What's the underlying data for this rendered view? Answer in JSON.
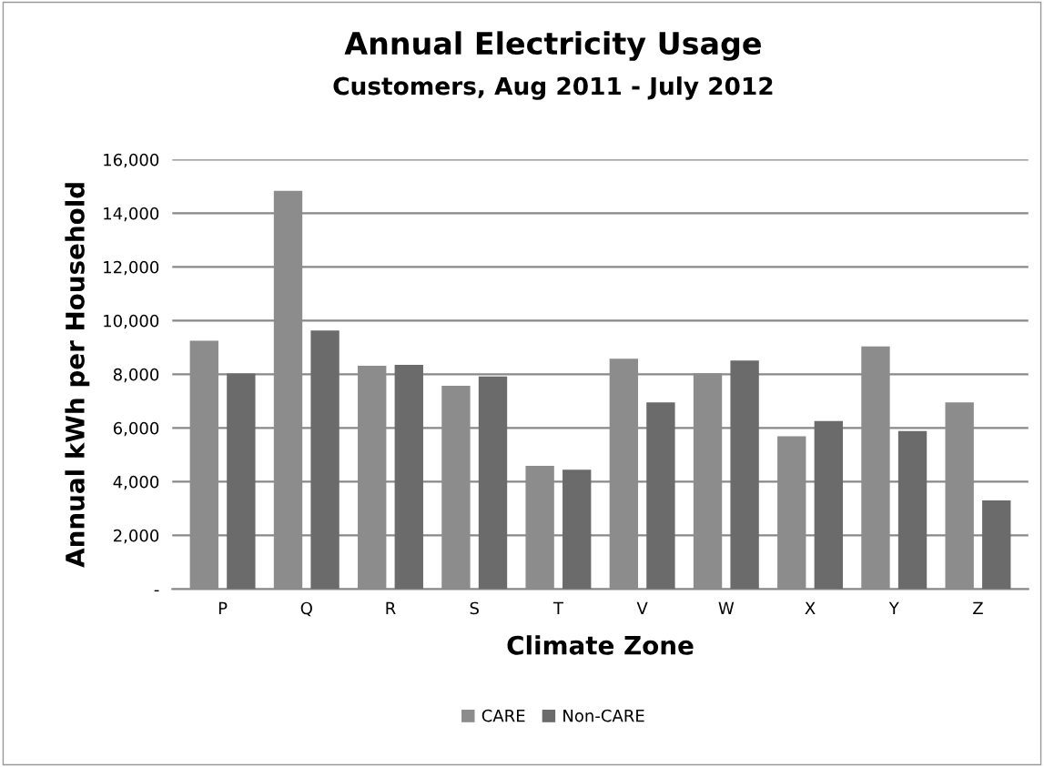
{
  "chart_data": {
    "type": "bar",
    "title": "Annual Electricity Usage",
    "subtitle": "Customers, Aug 2011 - July 2012",
    "xlabel": "Climate Zone",
    "ylabel": "Annual kWh per Household",
    "categories": [
      "P",
      "Q",
      "R",
      "S",
      "T",
      "V",
      "W",
      "X",
      "Y",
      "Z"
    ],
    "series": [
      {
        "name": "CARE",
        "color": "#8c8c8c",
        "values": [
          9250,
          14830,
          8320,
          7570,
          4590,
          8580,
          8040,
          5690,
          9040,
          6950
        ]
      },
      {
        "name": "Non-CARE",
        "color": "#6b6b6b",
        "values": [
          8030,
          9630,
          8350,
          7920,
          4450,
          6950,
          8510,
          6260,
          5890,
          3300
        ]
      }
    ],
    "ylim": [
      0,
      16000
    ],
    "yticks": [
      {
        "value": 0,
        "label": "-"
      },
      {
        "value": 2000,
        "label": "2,000"
      },
      {
        "value": 4000,
        "label": "4,000"
      },
      {
        "value": 6000,
        "label": "6,000"
      },
      {
        "value": 8000,
        "label": "8,000"
      },
      {
        "value": 10000,
        "label": "10,000"
      },
      {
        "value": 12000,
        "label": "12,000"
      },
      {
        "value": 14000,
        "label": "14,000"
      },
      {
        "value": 16000,
        "label": "16,000"
      }
    ],
    "grid": "y",
    "legend": "bottom"
  }
}
